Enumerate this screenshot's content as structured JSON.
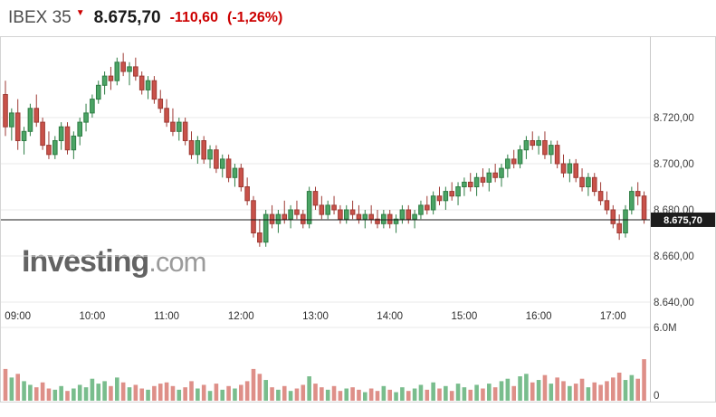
{
  "header": {
    "symbol": "IBEX 35",
    "last": "8.675,70",
    "change": "-110,60",
    "change_pct": "(-1,26%)"
  },
  "icons": {
    "price_down": "▼"
  },
  "watermark": {
    "brand": "Investing",
    "suffix": ".com"
  },
  "axes": {
    "price_labels": [
      "8.720,00",
      "8.700,00",
      "8.680,00",
      "8.660,00",
      "8.640,00"
    ],
    "price_values": [
      8720,
      8700,
      8680,
      8660,
      8640
    ],
    "time_labels": [
      "09:00",
      "10:00",
      "11:00",
      "12:00",
      "13:00",
      "14:00",
      "15:00",
      "16:00",
      "17:00"
    ],
    "volume_top_label": "6.0M",
    "volume_top_value_millions": 6.0,
    "volume_bottom_label": "0",
    "current_price_label": "8.675,70",
    "current_price_value": 8675.7
  },
  "chart_data": {
    "type": "candlestick",
    "title": "IBEX 35 intraday price with volume",
    "interval_minutes": 5,
    "start_time": "08:50",
    "hour_tick_start_index": 2,
    "ylim": [
      8630,
      8757
    ],
    "volume_ylim_millions": [
      0,
      6
    ],
    "candles": [
      [
        8730,
        8736,
        8712,
        8716
      ],
      [
        8716,
        8724,
        8710,
        8722
      ],
      [
        8722,
        8728,
        8706,
        8710
      ],
      [
        8710,
        8716,
        8704,
        8714
      ],
      [
        8714,
        8726,
        8712,
        8724
      ],
      [
        8724,
        8730,
        8716,
        8718
      ],
      [
        8718,
        8720,
        8706,
        8708
      ],
      [
        8708,
        8714,
        8702,
        8704
      ],
      [
        8704,
        8712,
        8702,
        8710
      ],
      [
        8710,
        8718,
        8706,
        8716
      ],
      [
        8716,
        8718,
        8704,
        8706
      ],
      [
        8706,
        8714,
        8702,
        8712
      ],
      [
        8712,
        8720,
        8708,
        8718
      ],
      [
        8718,
        8726,
        8714,
        8722
      ],
      [
        8722,
        8730,
        8720,
        8728
      ],
      [
        8728,
        8736,
        8726,
        8734
      ],
      [
        8734,
        8740,
        8730,
        8738
      ],
      [
        8738,
        8742,
        8732,
        8736
      ],
      [
        8736,
        8746,
        8734,
        8744
      ],
      [
        8744,
        8748,
        8738,
        8740
      ],
      [
        8740,
        8744,
        8734,
        8742
      ],
      [
        8742,
        8746,
        8736,
        8738
      ],
      [
        8738,
        8740,
        8730,
        8732
      ],
      [
        8732,
        8738,
        8728,
        8736
      ],
      [
        8736,
        8738,
        8726,
        8728
      ],
      [
        8728,
        8732,
        8722,
        8724
      ],
      [
        8724,
        8728,
        8716,
        8718
      ],
      [
        8718,
        8724,
        8712,
        8714
      ],
      [
        8714,
        8720,
        8710,
        8718
      ],
      [
        8718,
        8720,
        8708,
        8710
      ],
      [
        8710,
        8714,
        8702,
        8704
      ],
      [
        8704,
        8712,
        8700,
        8710
      ],
      [
        8710,
        8712,
        8700,
        8702
      ],
      [
        8702,
        8708,
        8698,
        8706
      ],
      [
        8706,
        8708,
        8696,
        8698
      ],
      [
        8698,
        8704,
        8694,
        8702
      ],
      [
        8702,
        8704,
        8692,
        8694
      ],
      [
        8694,
        8700,
        8690,
        8698
      ],
      [
        8698,
        8700,
        8688,
        8690
      ],
      [
        8690,
        8694,
        8682,
        8684
      ],
      [
        8684,
        8686,
        8668,
        8670
      ],
      [
        8670,
        8676,
        8664,
        8666
      ],
      [
        8666,
        8680,
        8664,
        8678
      ],
      [
        8678,
        8682,
        8672,
        8674
      ],
      [
        8674,
        8680,
        8670,
        8678
      ],
      [
        8678,
        8684,
        8674,
        8676
      ],
      [
        8676,
        8682,
        8672,
        8680
      ],
      [
        8680,
        8684,
        8676,
        8678
      ],
      [
        8678,
        8680,
        8672,
        8674
      ],
      [
        8674,
        8690,
        8672,
        8688
      ],
      [
        8688,
        8690,
        8680,
        8682
      ],
      [
        8682,
        8686,
        8676,
        8678
      ],
      [
        8678,
        8684,
        8676,
        8682
      ],
      [
        8682,
        8686,
        8678,
        8680
      ],
      [
        8680,
        8682,
        8674,
        8676
      ],
      [
        8676,
        8682,
        8674,
        8680
      ],
      [
        8680,
        8684,
        8676,
        8678
      ],
      [
        8678,
        8682,
        8674,
        8676
      ],
      [
        8676,
        8680,
        8672,
        8678
      ],
      [
        8678,
        8682,
        8674,
        8676
      ],
      [
        8676,
        8680,
        8672,
        8674
      ],
      [
        8674,
        8680,
        8672,
        8678
      ],
      [
        8678,
        8680,
        8672,
        8674
      ],
      [
        8674,
        8678,
        8670,
        8676
      ],
      [
        8676,
        8682,
        8674,
        8680
      ],
      [
        8680,
        8682,
        8674,
        8676
      ],
      [
        8676,
        8680,
        8672,
        8678
      ],
      [
        8678,
        8684,
        8676,
        8682
      ],
      [
        8682,
        8686,
        8678,
        8680
      ],
      [
        8680,
        8688,
        8678,
        8686
      ],
      [
        8686,
        8690,
        8682,
        8684
      ],
      [
        8684,
        8690,
        8680,
        8688
      ],
      [
        8688,
        8692,
        8684,
        8686
      ],
      [
        8686,
        8692,
        8682,
        8690
      ],
      [
        8690,
        8694,
        8686,
        8692
      ],
      [
        8692,
        8696,
        8688,
        8690
      ],
      [
        8690,
        8696,
        8686,
        8694
      ],
      [
        8694,
        8698,
        8690,
        8692
      ],
      [
        8692,
        8698,
        8688,
        8696
      ],
      [
        8696,
        8700,
        8692,
        8694
      ],
      [
        8694,
        8700,
        8690,
        8698
      ],
      [
        8698,
        8704,
        8694,
        8702
      ],
      [
        8702,
        8706,
        8698,
        8700
      ],
      [
        8700,
        8708,
        8698,
        8706
      ],
      [
        8706,
        8712,
        8702,
        8710
      ],
      [
        8710,
        8714,
        8706,
        8708
      ],
      [
        8708,
        8712,
        8704,
        8710
      ],
      [
        8710,
        8714,
        8702,
        8704
      ],
      [
        8704,
        8710,
        8700,
        8708
      ],
      [
        8708,
        8710,
        8698,
        8700
      ],
      [
        8700,
        8704,
        8694,
        8696
      ],
      [
        8696,
        8702,
        8692,
        8700
      ],
      [
        8700,
        8702,
        8692,
        8694
      ],
      [
        8694,
        8698,
        8688,
        8690
      ],
      [
        8690,
        8696,
        8686,
        8694
      ],
      [
        8694,
        8696,
        8686,
        8688
      ],
      [
        8688,
        8692,
        8682,
        8684
      ],
      [
        8684,
        8688,
        8678,
        8680
      ],
      [
        8680,
        8682,
        8672,
        8674
      ],
      [
        8674,
        8678,
        8667,
        8670
      ],
      [
        8670,
        8682,
        8668,
        8680
      ],
      [
        8680,
        8690,
        8678,
        8688
      ],
      [
        8688,
        8692,
        8682,
        8686
      ],
      [
        8686,
        8688,
        8674,
        8675.7
      ]
    ],
    "volumes_millions": [
      2.6,
      1.9,
      2.2,
      1.6,
      1.3,
      1.1,
      1.5,
      1.0,
      0.9,
      1.2,
      0.8,
      1.0,
      1.3,
      1.1,
      1.8,
      1.4,
      1.6,
      1.2,
      1.9,
      1.5,
      1.1,
      1.3,
      1.0,
      0.9,
      1.2,
      1.4,
      1.5,
      1.2,
      0.9,
      1.1,
      1.6,
      1.0,
      1.3,
      0.8,
      1.4,
      0.9,
      1.2,
      1.0,
      1.3,
      1.6,
      2.6,
      2.2,
      1.7,
      1.1,
      0.9,
      1.2,
      0.8,
      1.0,
      1.3,
      2.0,
      1.4,
      1.1,
      0.9,
      1.2,
      0.8,
      1.0,
      1.1,
      0.9,
      0.7,
      1.0,
      0.8,
      1.2,
      0.9,
      0.7,
      1.1,
      0.8,
      1.0,
      1.3,
      0.9,
      1.5,
      1.0,
      1.2,
      0.8,
      1.4,
      1.1,
      0.9,
      1.3,
      1.0,
      1.4,
      1.1,
      1.6,
      1.8,
      1.2,
      2.0,
      2.2,
      1.5,
      1.7,
      2.1,
      1.4,
      1.9,
      1.6,
      1.2,
      1.4,
      1.8,
      1.1,
      1.5,
      1.3,
      1.6,
      1.9,
      2.3,
      1.7,
      2.1,
      1.8,
      3.4
    ],
    "colors": {
      "up_fill": "#4ba465",
      "up_stroke": "#2e7d44",
      "down_fill": "#c9524a",
      "down_stroke": "#9e3a34",
      "vol_up": "#79bd8d",
      "vol_down": "#de8f88",
      "grid": "#e8e8e8",
      "border": "#d4d4d4",
      "axis_text": "#3c3c3c",
      "price_line": "#1a1a1a",
      "badge_bg": "#1c1c1c",
      "badge_text": "#ffffff",
      "change_red": "#cc0000"
    }
  }
}
